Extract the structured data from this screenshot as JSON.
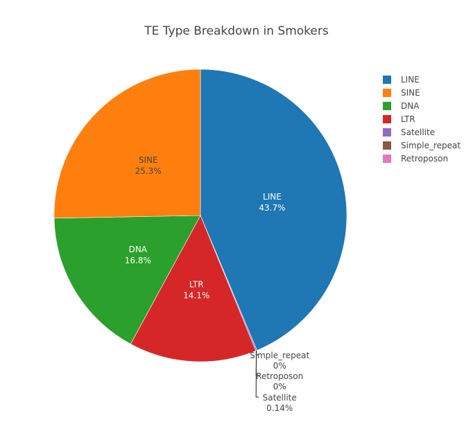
{
  "chart_data": {
    "type": "pie",
    "title": "TE Type Breakdown in Smokers",
    "slices": [
      {
        "label": "LINE",
        "value": 43.7,
        "percent_text": "43.7%",
        "color": "#1f77b4"
      },
      {
        "label": "SINE",
        "value": 25.3,
        "percent_text": "25.3%",
        "color": "#ff7f0e"
      },
      {
        "label": "DNA",
        "value": 16.8,
        "percent_text": "16.8%",
        "color": "#2ca02c"
      },
      {
        "label": "LTR",
        "value": 14.1,
        "percent_text": "14.1%",
        "color": "#d62728"
      },
      {
        "label": "Satellite",
        "value": 0.14,
        "percent_text": "0.14%",
        "color": "#9467bd"
      },
      {
        "label": "Simple_repeat",
        "value": 0.0,
        "percent_text": "0%",
        "color": "#8c564b"
      },
      {
        "label": "Retroposon",
        "value": 0.0,
        "percent_text": "0%",
        "color": "#e377c2"
      }
    ],
    "slice_order": [
      "LINE",
      "Satellite",
      "Simple_repeat",
      "Retroposon",
      "LTR",
      "DNA",
      "SINE"
    ],
    "legend": {
      "placement": "top-right",
      "entries": [
        "LINE",
        "SINE",
        "DNA",
        "LTR",
        "Satellite",
        "Simple_repeat",
        "Retroposon"
      ]
    },
    "outside_labels": [
      "Simple_repeat",
      "Retroposon",
      "Satellite"
    ]
  }
}
